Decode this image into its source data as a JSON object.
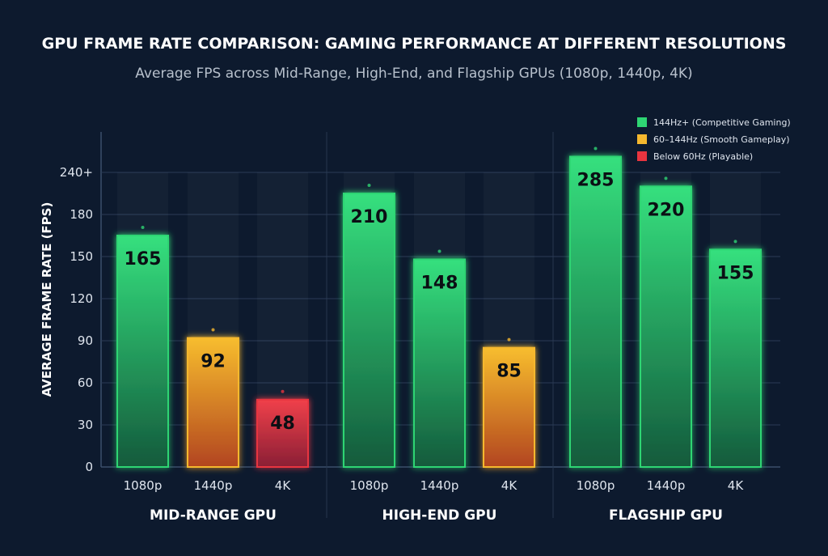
{
  "chart_data": {
    "type": "bar",
    "title": "GPU FRAME RATE COMPARISON: GAMING PERFORMANCE AT DIFFERENT RESOLUTIONS",
    "subtitle": "Average FPS across Mid-Range, High-End, and Flagship GPUs (1080p, 1440p, 4K)",
    "xlabel": "",
    "ylabel": "AVERAGE FRAME RATE (FPS)",
    "y_ticks": [
      "0",
      "30",
      "60",
      "90",
      "120",
      "150",
      "180",
      "240+"
    ],
    "y_tick_values": [
      0,
      30,
      60,
      90,
      120,
      150,
      180,
      240
    ],
    "grid": true,
    "legend_position": "top-right",
    "legend": [
      {
        "label": "144Hz+ (Competitive Gaming)",
        "color": "#2ed573"
      },
      {
        "label": "60–144Hz (Smooth Gameplay)",
        "color": "#f5b82e"
      },
      {
        "label": "Below 60Hz (Playable)",
        "color": "#e8343f"
      }
    ],
    "groups": [
      {
        "name": "MID-RANGE GPU",
        "categories": [
          "1080p",
          "1440p",
          "4K"
        ],
        "values": [
          165,
          92,
          48
        ],
        "tiers": [
          "green",
          "yellow",
          "red"
        ]
      },
      {
        "name": "HIGH-END GPU",
        "categories": [
          "1080p",
          "1440p",
          "4K"
        ],
        "values": [
          210,
          148,
          85
        ],
        "tiers": [
          "green",
          "green",
          "yellow"
        ]
      },
      {
        "name": "FLAGSHIP GPU",
        "categories": [
          "1080p",
          "1440p",
          "4K"
        ],
        "values": [
          285,
          220,
          155
        ],
        "tiers": [
          "green",
          "green",
          "green"
        ]
      }
    ],
    "colors": {
      "green": "#2ed573",
      "yellow": "#f5b82e",
      "red": "#e8343f",
      "background": "#0d1a2e"
    }
  }
}
